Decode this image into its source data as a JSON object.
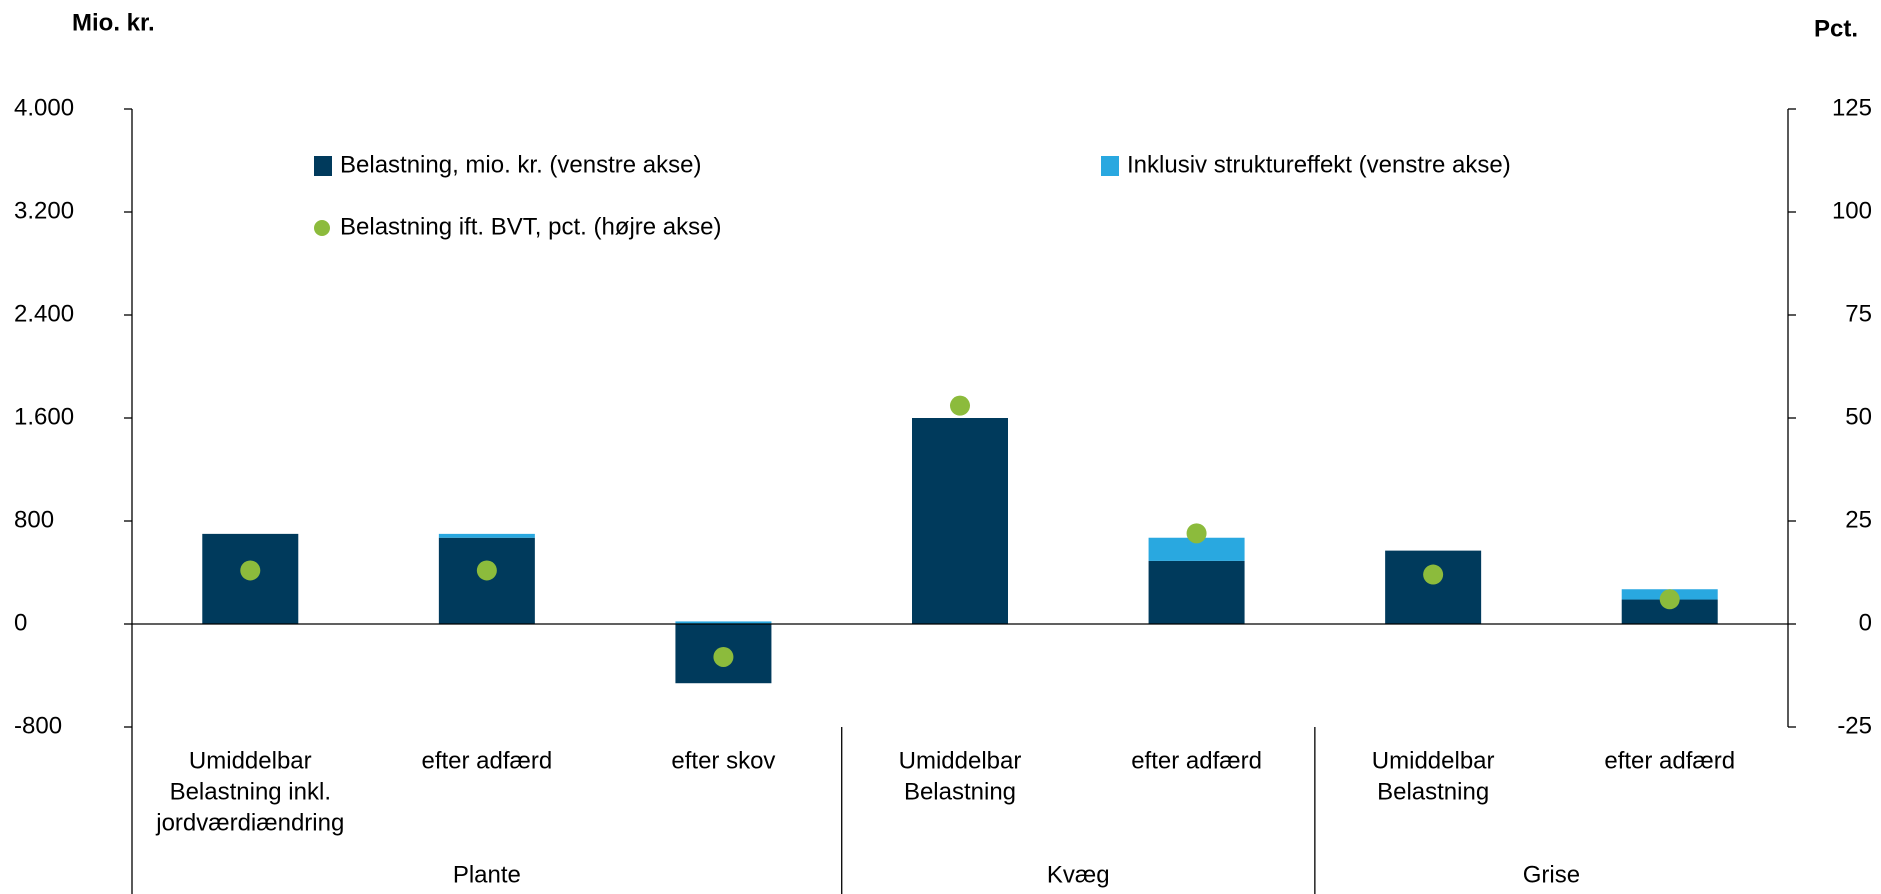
{
  "chart_data": {
    "type": "bar",
    "y_label": "Mio. kr.",
    "y2_label": "Pct.",
    "categories": [
      [
        "Umiddelbar",
        "Belastning inkl.",
        "jordværdiændring"
      ],
      [
        "efter adfærd"
      ],
      [
        "efter skov"
      ],
      [
        "Umiddelbar",
        "Belastning"
      ],
      [
        "efter adfærd"
      ],
      [
        "Umiddelbar",
        "Belastning"
      ],
      [
        "efter adfærd"
      ]
    ],
    "groups": [
      {
        "name": "Plante",
        "span": 3
      },
      {
        "name": "Kvæg",
        "span": 2
      },
      {
        "name": "Grise",
        "span": 2
      }
    ],
    "series": [
      {
        "name": "Belastning, mio. kr. (venstre akse)",
        "color": "#003a5c",
        "type": "bar",
        "values": [
          700,
          670,
          -460,
          1600,
          490,
          570,
          190
        ]
      },
      {
        "name": "Inklusiv struktureffekt (venstre akse)",
        "color": "#29a8e0",
        "type": "bar",
        "values": [
          0,
          30,
          20,
          0,
          180,
          0,
          80
        ]
      },
      {
        "name": "Belastning ift. BVT, pct. (højre akse)",
        "color": "#8cbb3c",
        "type": "scatter",
        "axis": "y2",
        "values": [
          13,
          13,
          -8,
          53,
          22,
          12,
          6
        ]
      }
    ],
    "stacked": true,
    "ylim": [
      -800,
      4000
    ],
    "yticks": [
      -800,
      0,
      {
        "value": 800,
        "label": "800"
      },
      {
        "value": 1600,
        "label": "1.600"
      },
      {
        "value": 2400,
        "label": "2.400"
      },
      {
        "value": 3200,
        "label": "3.200"
      },
      {
        "value": 4000,
        "label": "4.000"
      }
    ],
    "y2lim": [
      -25,
      125
    ],
    "y2ticks": [
      -25,
      0,
      25,
      50,
      75,
      100,
      125
    ]
  }
}
